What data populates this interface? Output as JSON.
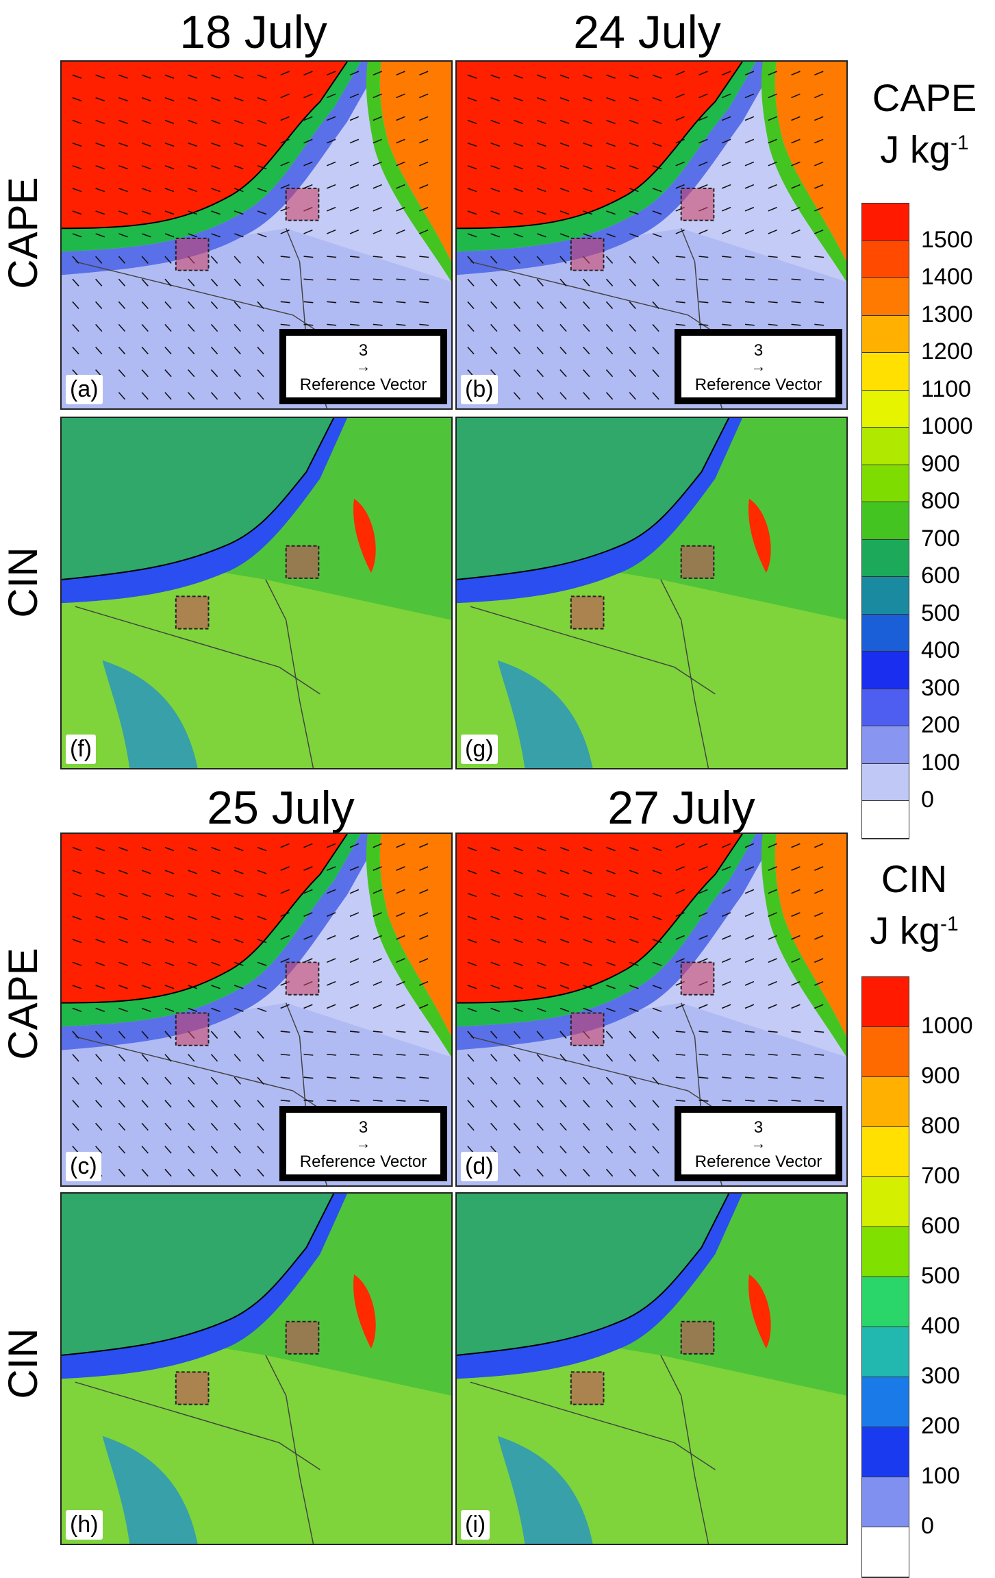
{
  "columns_top": [
    "18 July",
    "24 July"
  ],
  "columns_bottom": [
    "25 July",
    "27 July"
  ],
  "rows": {
    "cape": "CAPE",
    "cin": "CIN"
  },
  "panels": [
    {
      "id": "a",
      "label": "(a)",
      "kind": "cape"
    },
    {
      "id": "b",
      "label": "(b)",
      "kind": "cape"
    },
    {
      "id": "f",
      "label": "(f)",
      "kind": "cin"
    },
    {
      "id": "g",
      "label": "(g)",
      "kind": "cin"
    },
    {
      "id": "c",
      "label": "(c)",
      "kind": "cape"
    },
    {
      "id": "d",
      "label": "(d)",
      "kind": "cape"
    },
    {
      "id": "h",
      "label": "(h)",
      "kind": "cin"
    },
    {
      "id": "i",
      "label": "(i)",
      "kind": "cin"
    }
  ],
  "reference_vector": {
    "value": "3",
    "arrow": "→",
    "label": "Reference Vector"
  },
  "colorbar_cape": {
    "title": "CAPE",
    "unit_base": "J kg",
    "unit_exp": "-1",
    "ticks": [
      "1500",
      "1400",
      "1300",
      "1200",
      "1100",
      "1000",
      "900",
      "800",
      "700",
      "600",
      "500",
      "400",
      "300",
      "200",
      "100",
      "0"
    ],
    "colors": [
      "#ff1a00",
      "#ff4a00",
      "#ff7a00",
      "#ffb000",
      "#ffe000",
      "#e6f400",
      "#b0e800",
      "#7fdc00",
      "#44c420",
      "#1caa5a",
      "#1a8aa0",
      "#1a5ed8",
      "#1a2ef0",
      "#4e5ef0",
      "#8896f2",
      "#c0c8f6",
      "#ffffff"
    ]
  },
  "colorbar_cin": {
    "title": "CIN",
    "unit_base": "J kg",
    "unit_exp": "-1",
    "ticks": [
      "1000",
      "900",
      "800",
      "700",
      "600",
      "500",
      "400",
      "300",
      "200",
      "100",
      "0"
    ],
    "colors": [
      "#ff1a00",
      "#ff6a00",
      "#ffb000",
      "#ffe000",
      "#d4f000",
      "#80e000",
      "#2ad66a",
      "#22b8b0",
      "#1a7ae8",
      "#1a3af0",
      "#8090f0",
      "#ffffff"
    ]
  }
}
